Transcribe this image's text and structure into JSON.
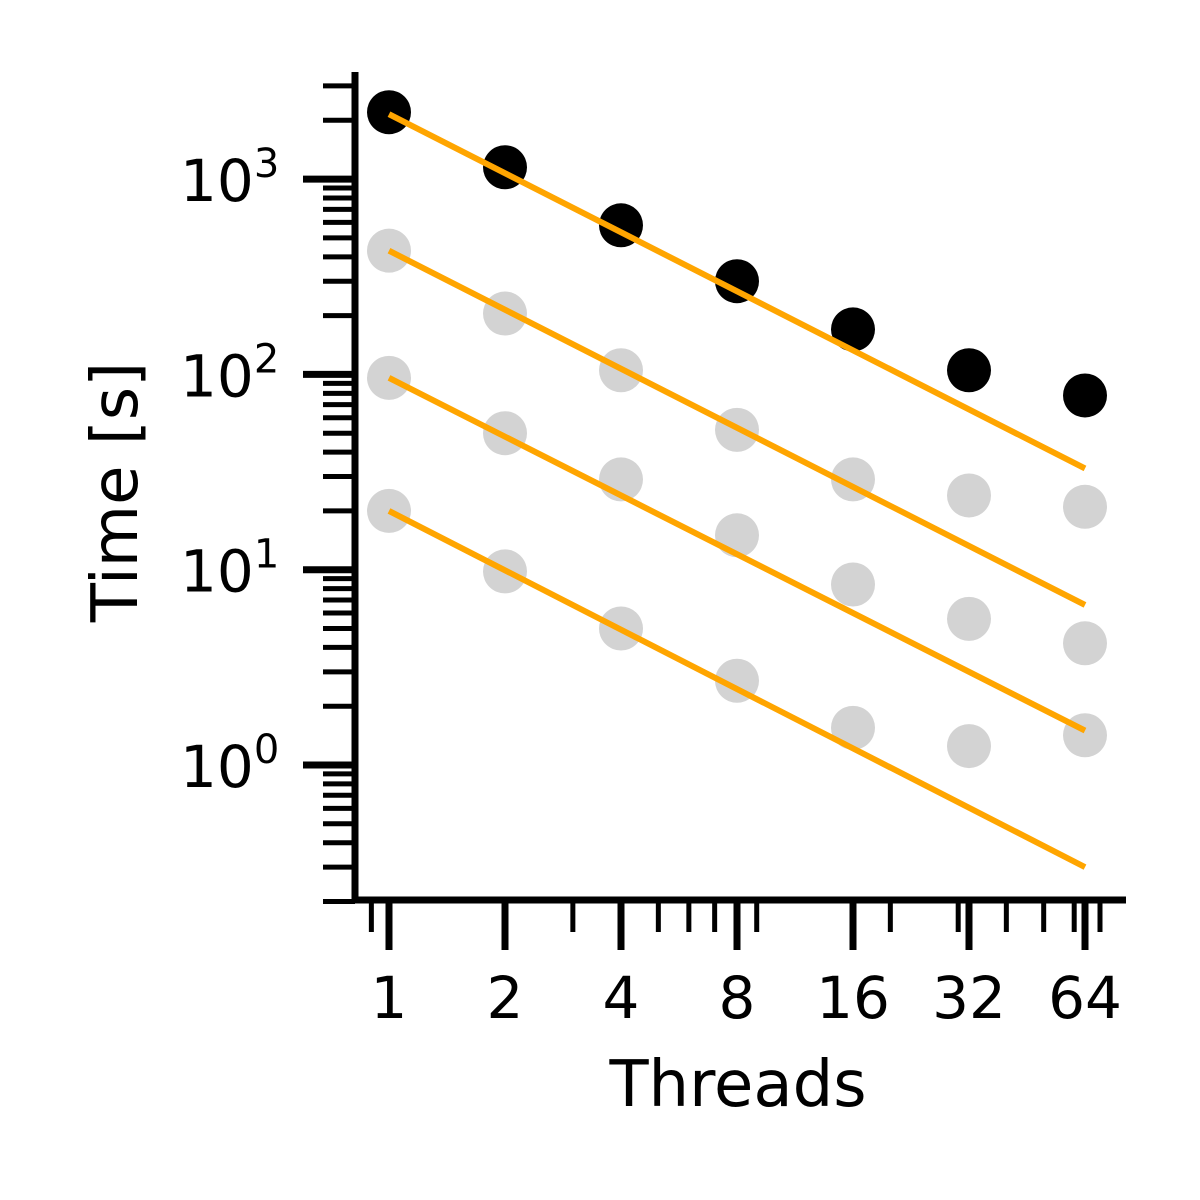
{
  "chart_data": {
    "type": "scatter",
    "title": "",
    "xlabel": "Threads",
    "ylabel": "Time [s]",
    "xscale": "log2",
    "yscale": "log10",
    "x": [
      1,
      2,
      4,
      8,
      16,
      32,
      64
    ],
    "xlim": [
      0.89,
      75
    ],
    "ylim": [
      0.2,
      3500
    ],
    "x_tick_labels": [
      "1",
      "2",
      "4",
      "8",
      "16",
      "32",
      "64"
    ],
    "y_ticks": [
      {
        "value": 1,
        "base": "10",
        "exp": "0"
      },
      {
        "value": 10,
        "base": "10",
        "exp": "1"
      },
      {
        "value": 100,
        "base": "10",
        "exp": "2"
      },
      {
        "value": 1000,
        "base": "10",
        "exp": "3"
      }
    ],
    "grid": false,
    "legend": "none",
    "colors": {
      "highlighted_points": "#000000",
      "background_points": "#d3d3d3",
      "ideal_scaling_lines": "#ffa500",
      "axes": "#000000"
    },
    "series": [
      {
        "role": "highlighted",
        "values": [
          2200,
          1150,
          580,
          300,
          170,
          105,
          78
        ]
      },
      {
        "role": "background",
        "values": [
          430,
          205,
          105,
          52,
          29,
          24,
          21
        ]
      },
      {
        "role": "background",
        "values": [
          96,
          50,
          29,
          15,
          8.4,
          5.6,
          4.2
        ]
      },
      {
        "role": "background",
        "values": [
          20,
          9.8,
          5.0,
          2.7,
          1.55,
          1.25,
          1.42
        ]
      }
    ],
    "ideal_scaling": [
      {
        "start": 2150,
        "end": 33
      },
      {
        "start": 430,
        "end": 6.6
      },
      {
        "start": 96,
        "end": 1.5
      },
      {
        "start": 20,
        "end": 0.3
      }
    ]
  }
}
